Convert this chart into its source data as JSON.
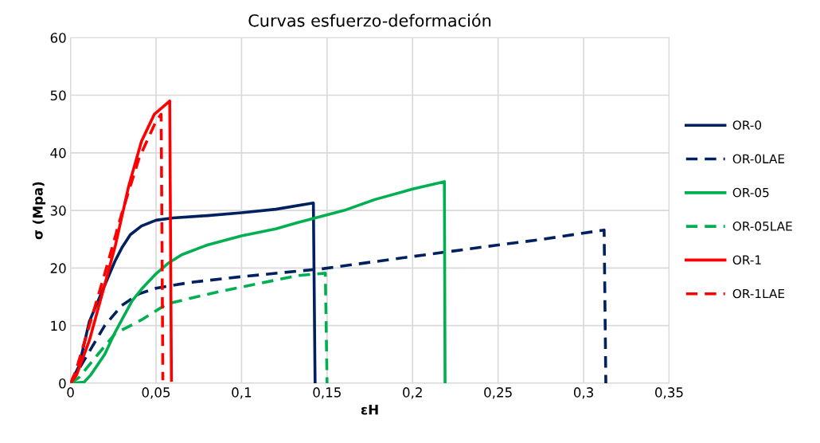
{
  "chart_data": {
    "type": "line",
    "title": "Curvas esfuerzo-deformación",
    "xlabel": "εH",
    "ylabel": "σ (Mpa)",
    "xlim": [
      0,
      0.35
    ],
    "ylim": [
      0,
      60
    ],
    "xticks": [
      0,
      {
        "value": 0.05,
        "label": "0,05"
      },
      {
        "value": 0.1,
        "label": "0,1"
      },
      {
        "value": 0.15,
        "label": "0,15"
      },
      {
        "value": 0.2,
        "label": "0,2"
      },
      {
        "value": 0.25,
        "label": "0,25"
      },
      {
        "value": 0.3,
        "label": "0,3"
      },
      {
        "value": 0.35,
        "label": "0,35"
      }
    ],
    "yticks": [
      0,
      10,
      20,
      30,
      40,
      50,
      60
    ],
    "grid": true,
    "legend": "right",
    "marker": "none",
    "series": [
      {
        "name": "OR-0",
        "color": "#002060",
        "line_style": "solid",
        "x": [
          0,
          0.005,
          0.011,
          0.02,
          0.026,
          0.03,
          0.035,
          0.0415,
          0.05,
          0.06,
          0.08,
          0.1,
          0.12,
          0.142,
          0.143
        ],
        "values": [
          0,
          3,
          10.7,
          17,
          21.2,
          23.5,
          25.8,
          27.3,
          28.3,
          28.7,
          29.1,
          29.6,
          30.2,
          31.3,
          0
        ]
      },
      {
        "name": "OR-0LAE",
        "color": "#002060",
        "line_style": "dashed",
        "x": [
          0,
          0.01,
          0.02,
          0.03,
          0.04,
          0.05,
          0.07,
          0.1,
          0.148,
          0.2,
          0.25,
          0.274,
          0.312,
          0.313
        ],
        "values": [
          0,
          5,
          10,
          13.5,
          15.5,
          16.5,
          17.5,
          18.5,
          19.9,
          22,
          24,
          24.9,
          26.6,
          0
        ]
      },
      {
        "name": "OR-05",
        "color": "#00b050",
        "line_style": "solid",
        "x": [
          0,
          0.008,
          0.012,
          0.02,
          0.026,
          0.03,
          0.036,
          0.042,
          0.05,
          0.057,
          0.065,
          0.08,
          0.1,
          0.12,
          0.133,
          0.16,
          0.178,
          0.2,
          0.2186,
          0.219
        ],
        "values": [
          0,
          0.2,
          1.5,
          5,
          8.8,
          11,
          14.3,
          16.5,
          19,
          20.8,
          22.3,
          24,
          25.6,
          26.8,
          27.9,
          30,
          31.9,
          33.7,
          35,
          0
        ]
      },
      {
        "name": "OR-05LAE",
        "color": "#00b050",
        "line_style": "dashed",
        "x": [
          0,
          0.005,
          0.011,
          0.026,
          0.0415,
          0.0566,
          0.087,
          0.133,
          0.149,
          0.15
        ],
        "values": [
          0,
          1,
          3.2,
          8.6,
          11,
          13.8,
          15.9,
          18.7,
          19.1,
          0
        ]
      },
      {
        "name": "OR-1",
        "color": "#ff0000",
        "line_style": "solid",
        "x": [
          0,
          0.0035,
          0.011,
          0.0187,
          0.0263,
          0.034,
          0.0415,
          0.049,
          0.058,
          0.059
        ],
        "values": [
          0,
          1.4,
          7.4,
          15.7,
          24,
          34.2,
          42,
          46.7,
          49,
          0.5
        ]
      },
      {
        "name": "OR-1LAE",
        "color": "#ff0000",
        "line_style": "dashed",
        "x": [
          0,
          0.003,
          0.01,
          0.02,
          0.03,
          0.04,
          0.05,
          0.053,
          0.054
        ],
        "values": [
          0,
          2,
          9,
          19,
          29.5,
          39,
          45.5,
          46.7,
          0.5
        ]
      }
    ]
  }
}
